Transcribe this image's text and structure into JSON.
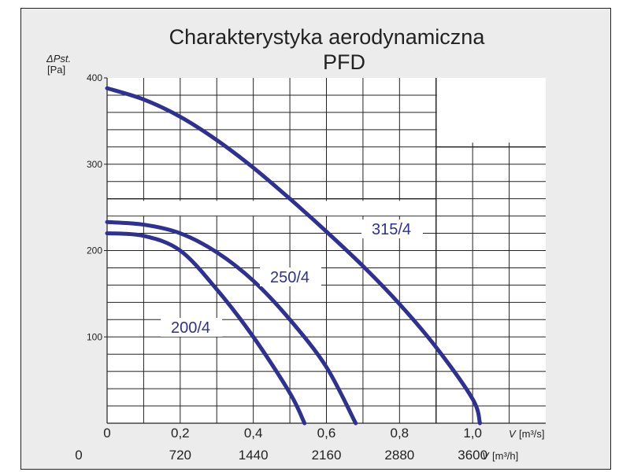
{
  "chart_data": {
    "type": "line",
    "title": "Charakterystyka aerodynamiczna",
    "subtitle": "PFD",
    "ylabel": "ΔPst.",
    "yunit": "[Pa]",
    "xlabel": "V",
    "xunit": "[m³/s]",
    "x2label": "V",
    "x2unit": "[m³/h]",
    "xlim": [
      0,
      1.2
    ],
    "ylim": [
      0,
      400
    ],
    "yticks": [
      "100",
      "200",
      "300",
      "400"
    ],
    "xticks": [
      {
        "v": 0,
        "label": "0"
      },
      {
        "v": 0.2,
        "label": "0,2"
      },
      {
        "v": 0.4,
        "label": "0,4"
      },
      {
        "v": 0.6,
        "label": "0,6"
      },
      {
        "v": 0.8,
        "label": "0,8"
      },
      {
        "v": 1.0,
        "label": "1,0"
      }
    ],
    "x2ticks": [
      {
        "v": 0,
        "label": "0"
      },
      {
        "v": 0.2,
        "label": "720"
      },
      {
        "v": 0.4,
        "label": "1440"
      },
      {
        "v": 0.6,
        "label": "2160"
      },
      {
        "v": 0.8,
        "label": "2880"
      },
      {
        "v": 1.0,
        "label": "3600"
      }
    ],
    "grid": true,
    "line_color": "#2e3192",
    "series": [
      {
        "name": "315/4",
        "x": [
          0,
          0.1,
          0.2,
          0.3,
          0.4,
          0.5,
          0.6,
          0.7,
          0.8,
          0.9,
          1.0,
          1.02
        ],
        "y": [
          388,
          375,
          355,
          328,
          296,
          260,
          222,
          182,
          138,
          88,
          28,
          0
        ]
      },
      {
        "name": "250/4",
        "x": [
          0,
          0.1,
          0.2,
          0.3,
          0.4,
          0.5,
          0.6,
          0.68
        ],
        "y": [
          233,
          230,
          220,
          198,
          165,
          120,
          65,
          0
        ]
      },
      {
        "name": "200/4",
        "x": [
          0,
          0.1,
          0.2,
          0.3,
          0.4,
          0.5,
          0.54
        ],
        "y": [
          220,
          217,
          200,
          155,
          100,
          35,
          0
        ]
      }
    ]
  }
}
